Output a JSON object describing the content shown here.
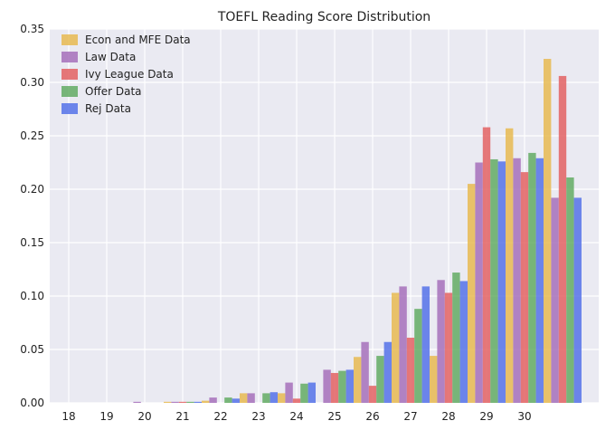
{
  "chart_data": {
    "type": "bar",
    "title": "TOEFL Reading Score Distribution",
    "xlabel": "",
    "ylabel": "",
    "categories": [
      "18",
      "19",
      "20",
      "21",
      "22",
      "23",
      "24",
      "25",
      "26",
      "27",
      "28",
      "29",
      "30"
    ],
    "ylim": [
      0,
      0.35
    ],
    "yticks": [
      "0.00",
      "0.05",
      "0.10",
      "0.15",
      "0.20",
      "0.25",
      "0.30",
      "0.35"
    ],
    "grid": true,
    "legend_position": "top-left",
    "background": "#eaeaf2",
    "series": [
      {
        "name": "Econ and MFE Data",
        "color": "#e8b84b",
        "values": [
          0.0,
          0.0,
          0.001,
          0.002,
          0.009,
          0.009,
          0.0,
          0.043,
          0.103,
          0.044,
          0.205,
          0.257,
          0.322
        ]
      },
      {
        "name": "Law Data",
        "color": "#a36bb8",
        "values": [
          0.0,
          0.001,
          0.001,
          0.005,
          0.009,
          0.019,
          0.031,
          0.057,
          0.109,
          0.115,
          0.225,
          0.229,
          0.192
        ]
      },
      {
        "name": "Ivy League Data",
        "color": "#e35d5d",
        "values": [
          0.0,
          0.0,
          0.001,
          0.0,
          0.0,
          0.004,
          0.028,
          0.016,
          0.061,
          0.103,
          0.258,
          0.216,
          0.306
        ]
      },
      {
        "name": "Offer Data",
        "color": "#5ea95e",
        "values": [
          0.0,
          0.0,
          0.001,
          0.005,
          0.009,
          0.018,
          0.03,
          0.044,
          0.088,
          0.122,
          0.228,
          0.234,
          0.211
        ]
      },
      {
        "name": "Rej Data",
        "color": "#4f6ee8",
        "values": [
          0.0,
          0.0,
          0.001,
          0.004,
          0.01,
          0.019,
          0.031,
          0.057,
          0.109,
          0.114,
          0.226,
          0.229,
          0.192
        ]
      }
    ]
  }
}
